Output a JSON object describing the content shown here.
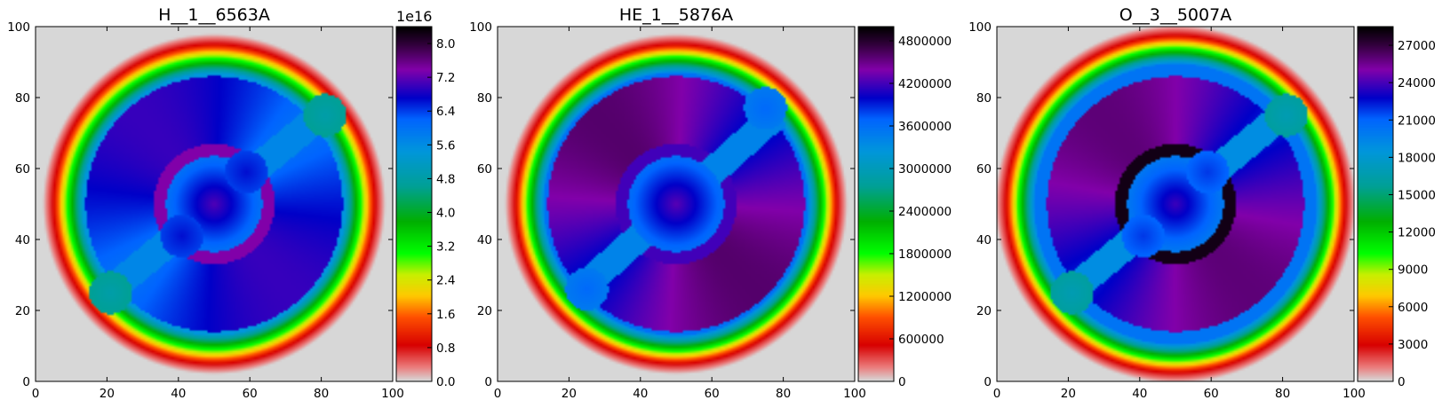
{
  "chart_data": [
    {
      "type": "heatmap",
      "title": "H__1__6563A",
      "xlabel": "",
      "ylabel": "",
      "xlim": [
        0,
        100
      ],
      "ylim": [
        0,
        100
      ],
      "x_ticks": [
        "0",
        "20",
        "40",
        "60",
        "80",
        "100"
      ],
      "y_ticks": [
        "0",
        "20",
        "40",
        "60",
        "80",
        "100"
      ],
      "colorbar": {
        "min": 0,
        "max": 8.4,
        "offset_label": "1e16",
        "ticks": [
          "0.0",
          "0.8",
          "1.6",
          "2.4",
          "3.2",
          "4.0",
          "4.8",
          "5.6",
          "6.4",
          "7.2",
          "8.0"
        ]
      },
      "structure": {
        "background_value": 0,
        "outer_shell_peak": 8.4,
        "core_value": 6.0,
        "inner_ring_value": 7.4,
        "lobe_value": 7.0,
        "jet_axis_deg": 40,
        "clumps": [
          {
            "x": 81,
            "y": 75,
            "value": 4.6
          },
          {
            "x": 21,
            "y": 25,
            "value": 4.6
          },
          {
            "x": 59,
            "y": 59,
            "value": 6.4
          },
          {
            "x": 41,
            "y": 41,
            "value": 6.4
          }
        ]
      }
    },
    {
      "type": "heatmap",
      "title": "HE_1__5876A",
      "xlabel": "",
      "ylabel": "",
      "xlim": [
        0,
        100
      ],
      "ylim": [
        0,
        100
      ],
      "x_ticks": [
        "0",
        "20",
        "40",
        "60",
        "80",
        "100"
      ],
      "y_ticks": [
        "0",
        "20",
        "40",
        "60",
        "80",
        "100"
      ],
      "colorbar": {
        "min": 0,
        "max": 5000000,
        "offset_label": "",
        "ticks": [
          "0",
          "600000",
          "1200000",
          "1800000",
          "2400000",
          "3000000",
          "3600000",
          "4200000",
          "4800000"
        ]
      },
      "structure": {
        "background_value": 0,
        "outer_shell_peak": 5000000,
        "core_value": 3600000,
        "inner_ring_value": 4200000,
        "lobe_value": 4600000,
        "jet_axis_deg": 42,
        "clumps": [
          {
            "x": 75,
            "y": 77,
            "value": 3500000
          },
          {
            "x": 25,
            "y": 26,
            "value": 3500000
          }
        ]
      }
    },
    {
      "type": "heatmap",
      "title": "O__3__5007A",
      "xlabel": "",
      "ylabel": "",
      "xlim": [
        0,
        100
      ],
      "ylim": [
        0,
        100
      ],
      "x_ticks": [
        "0",
        "20",
        "40",
        "60",
        "80",
        "100"
      ],
      "y_ticks": [
        "0",
        "20",
        "40",
        "60",
        "80",
        "100"
      ],
      "colorbar": {
        "min": 0,
        "max": 28500,
        "offset_label": "",
        "ticks": [
          "0",
          "3000",
          "6000",
          "9000",
          "12000",
          "15000",
          "18000",
          "21000",
          "24000",
          "27000"
        ]
      },
      "structure": {
        "background_value": 0,
        "outer_shell_peak": 28500,
        "core_value": 20000,
        "inner_ring_value": 28000,
        "lobe_value": 26000,
        "jet_axis_deg": 40,
        "clumps": [
          {
            "x": 81,
            "y": 75,
            "value": 16000
          },
          {
            "x": 21,
            "y": 25,
            "value": 16000
          },
          {
            "x": 59,
            "y": 59,
            "value": 21000
          },
          {
            "x": 41,
            "y": 41,
            "value": 21000
          }
        ]
      }
    }
  ]
}
